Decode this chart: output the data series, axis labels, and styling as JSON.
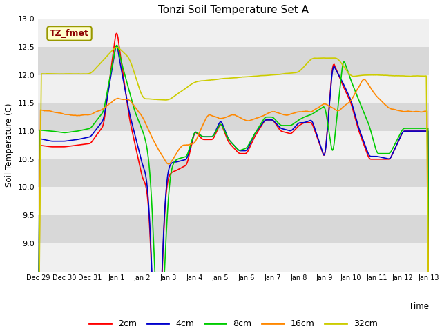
{
  "title": "Tonzi Soil Temperature Set A",
  "xlabel": "Time",
  "ylabel": "Soil Temperature (C)",
  "label_text": "TZ_fmet",
  "ylim": [
    8.5,
    13.0
  ],
  "yticks": [
    9.0,
    9.5,
    10.0,
    10.5,
    11.0,
    11.5,
    12.0,
    12.5,
    13.0
  ],
  "series_labels": [
    "2cm",
    "4cm",
    "8cm",
    "16cm",
    "32cm"
  ],
  "series_colors": [
    "#ff0000",
    "#0000cc",
    "#00cc00",
    "#ff8800",
    "#cccc00"
  ],
  "fig_facecolor": "#ffffff",
  "plot_bg_color": "#e8e8e8",
  "band_light": "#f0f0f0",
  "band_dark": "#d8d8d8",
  "xtick_labels": [
    "Dec 29",
    "Dec 30",
    "Dec 31",
    "Jan 1",
    "Jan 2",
    "Jan 3",
    "Jan 4",
    "Jan 5",
    "Jan 6",
    "Jan 7",
    "Jan 8",
    "Jan 9",
    "Jan 10",
    "Jan 11",
    "Jan 12",
    "Jan 13"
  ],
  "n_points": 480
}
